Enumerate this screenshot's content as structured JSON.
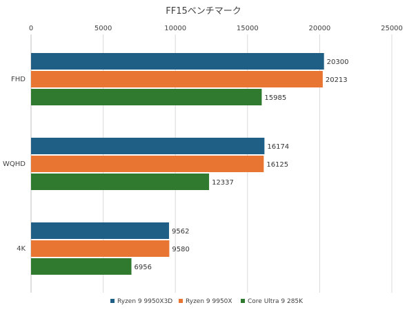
{
  "chart_data": {
    "type": "bar",
    "orientation": "horizontal",
    "title": "FF15ベンチマーク",
    "categories": [
      "FHD",
      "WQHD",
      "4K"
    ],
    "series": [
      {
        "name": "Ryzen 9 9950X3D",
        "color": "#1f5f86",
        "values": [
          20300,
          16174,
          9562
        ]
      },
      {
        "name": "Ryzen 9 9950X",
        "color": "#e97532",
        "values": [
          20213,
          16125,
          9580
        ]
      },
      {
        "name": "Core Ultra 9 285K",
        "color": "#2f7a2f",
        "values": [
          15985,
          12337,
          6956
        ]
      }
    ],
    "xlim": [
      0,
      25000
    ],
    "xticks": [
      0,
      5000,
      10000,
      15000,
      20000,
      25000
    ],
    "xlabel": "",
    "ylabel": "",
    "grid": true,
    "x_axis_position": "top",
    "legend_position": "bottom",
    "data_labels": true
  }
}
